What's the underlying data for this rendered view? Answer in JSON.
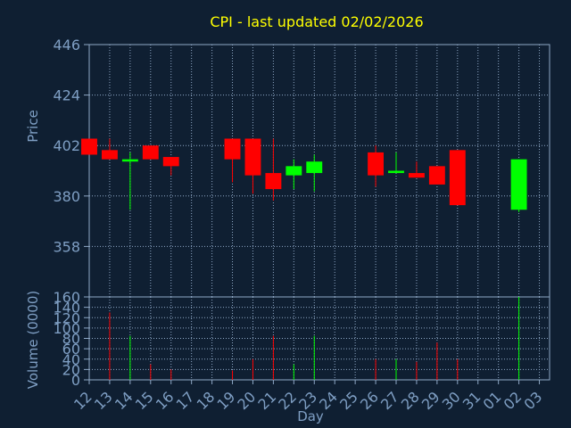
{
  "title": "CPI - last updated 02/02/2026",
  "colors": {
    "background": "#0f1f32",
    "title": "#ffff00",
    "axis_text": "#7f9fc4",
    "axis_line": "#8fa8c6",
    "grid": "#8fa8c6",
    "up": "#00ff00",
    "down": "#ff0000"
  },
  "chart_data": [
    {
      "type": "candlestick",
      "title": "CPI - last updated 02/02/2026",
      "ylabel": "Price",
      "ylim": [
        336,
        446
      ],
      "yticks": [
        446,
        424,
        402,
        380,
        358
      ],
      "grid": true,
      "categories": [
        "12",
        "13",
        "14",
        "15",
        "16",
        "17",
        "18",
        "19",
        "20",
        "21",
        "22",
        "23",
        "24",
        "25",
        "26",
        "27",
        "28",
        "29",
        "30",
        "31",
        "01",
        "02",
        "03"
      ],
      "candles": [
        {
          "day": "12",
          "open": 405,
          "close": 398,
          "high": 405,
          "low": 398
        },
        {
          "day": "13",
          "open": 400,
          "close": 396,
          "high": 405,
          "low": 396
        },
        {
          "day": "14",
          "open": 395,
          "close": 396,
          "high": 399,
          "low": 374
        },
        {
          "day": "15",
          "open": 402,
          "close": 396,
          "high": 402,
          "low": 396
        },
        {
          "day": "16",
          "open": 397,
          "close": 393,
          "high": 397,
          "low": 389
        },
        {
          "day": "19",
          "open": 405,
          "close": 396,
          "high": 405,
          "low": 386
        },
        {
          "day": "20",
          "open": 405,
          "close": 389,
          "high": 405,
          "low": 381
        },
        {
          "day": "21",
          "open": 390,
          "close": 383,
          "high": 405,
          "low": 378
        },
        {
          "day": "22",
          "open": 389,
          "close": 393,
          "high": 396,
          "low": 383
        },
        {
          "day": "23",
          "open": 390,
          "close": 395,
          "high": 398,
          "low": 382
        },
        {
          "day": "26",
          "open": 399,
          "close": 389,
          "high": 402,
          "low": 384
        },
        {
          "day": "27",
          "open": 390,
          "close": 391,
          "high": 399,
          "low": 390
        },
        {
          "day": "28",
          "open": 390,
          "close": 388,
          "high": 395,
          "low": 388
        },
        {
          "day": "29",
          "open": 393,
          "close": 385,
          "high": 393,
          "low": 385
        },
        {
          "day": "30",
          "open": 400,
          "close": 376,
          "high": 400,
          "low": 376
        },
        {
          "day": "02",
          "open": 374,
          "close": 396,
          "high": 396,
          "low": 373
        }
      ]
    },
    {
      "type": "bar",
      "ylabel": "Volume (0000)",
      "xlabel": "Day",
      "ylim": [
        0,
        160
      ],
      "yticks": [
        160,
        140,
        120,
        100,
        80,
        60,
        40,
        20,
        0
      ],
      "grid": true,
      "categories": [
        "12",
        "13",
        "14",
        "15",
        "16",
        "17",
        "18",
        "19",
        "20",
        "21",
        "22",
        "23",
        "24",
        "25",
        "26",
        "27",
        "28",
        "29",
        "30",
        "31",
        "01",
        "02",
        "03"
      ],
      "bars": [
        {
          "day": "13",
          "value": 130,
          "direction": "down"
        },
        {
          "day": "14",
          "value": 85,
          "direction": "up"
        },
        {
          "day": "15",
          "value": 30,
          "direction": "down"
        },
        {
          "day": "16",
          "value": 20,
          "direction": "down"
        },
        {
          "day": "19",
          "value": 18,
          "direction": "down"
        },
        {
          "day": "20",
          "value": 40,
          "direction": "down"
        },
        {
          "day": "21",
          "value": 85,
          "direction": "down"
        },
        {
          "day": "22",
          "value": 30,
          "direction": "up"
        },
        {
          "day": "23",
          "value": 85,
          "direction": "up"
        },
        {
          "day": "26",
          "value": 40,
          "direction": "down"
        },
        {
          "day": "27",
          "value": 40,
          "direction": "up"
        },
        {
          "day": "28",
          "value": 35,
          "direction": "down"
        },
        {
          "day": "29",
          "value": 72,
          "direction": "down"
        },
        {
          "day": "30",
          "value": 40,
          "direction": "down"
        },
        {
          "day": "02",
          "value": 160,
          "direction": "up"
        }
      ]
    }
  ]
}
